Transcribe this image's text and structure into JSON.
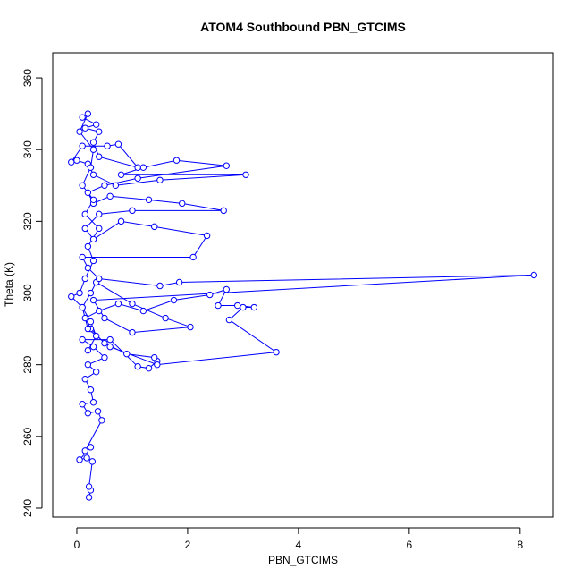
{
  "chart_data": {
    "type": "line",
    "marker": "circle",
    "title": "ATOM4 Southbound PBN_GTCIMS",
    "x_label": "PBN_GTCIMS",
    "y_label": "Theta (K)",
    "color": "#0000ff",
    "x": [
      0.22,
      0.25,
      0.22,
      0.28,
      0.18,
      0.05,
      0.25,
      0.15,
      0.45,
      0.38,
      0.2,
      0.1,
      0.3,
      0.25,
      0.15,
      0.35,
      0.2,
      0.5,
      0.3,
      0.1,
      0.6,
      1.1,
      1.3,
      1.45,
      1.4,
      0.9,
      0.5,
      0.25,
      0.15,
      0.4,
      0.75,
      1.2,
      1.75,
      2.4,
      2.7,
      2.55,
      2.9,
      3.2,
      3.0,
      2.75,
      3.6,
      1.45,
      0.6,
      0.2,
      0.1,
      0.25,
      0.35,
      1.0,
      1.6,
      2.05,
      1.0,
      0.5,
      0.3,
      8.25,
      1.85,
      1.5,
      0.4,
      0.2,
      0.1,
      2.1,
      2.35,
      1.4,
      0.8,
      0.3,
      0.15,
      0.4,
      1.0,
      2.65,
      1.9,
      1.3,
      0.6,
      0.3,
      0.2,
      0.5,
      1.1,
      2.7,
      1.8,
      1.2,
      0.8,
      3.05,
      1.5,
      0.7,
      0.3,
      0.2,
      0.0,
      -0.1,
      0.1,
      0.55,
      0.75,
      1.1,
      0.4,
      0.3,
      0.4,
      0.15,
      0.35,
      0.1,
      0.2,
      0.05,
      0.3,
      0.25,
      0.1,
      0.3,
      0.15,
      0.4,
      0.2,
      0.3,
      0.15,
      0.05,
      -0.1,
      0.1,
      0.25,
      0.35,
      0.2
    ],
    "values": [
      243,
      245,
      246,
      253,
      254,
      253.5,
      257,
      256,
      264.5,
      267,
      266.5,
      269,
      269.5,
      273,
      276,
      278,
      280,
      282,
      285,
      287,
      287,
      279.5,
      279,
      281,
      282,
      283,
      286,
      290,
      293,
      295,
      297,
      295,
      298,
      299.5,
      301,
      296.5,
      296.5,
      296,
      296,
      292.5,
      283.5,
      280,
      285,
      290,
      296,
      300,
      303,
      297,
      293,
      290.5,
      289,
      293,
      298,
      305,
      303,
      302,
      304,
      307,
      310,
      310,
      316,
      318.5,
      320,
      315,
      318,
      322,
      323,
      323,
      325,
      326,
      327,
      325,
      328,
      330,
      332,
      335.5,
      337,
      335,
      333,
      333,
      331.5,
      330,
      333,
      336,
      337,
      336.5,
      341,
      341,
      341.5,
      335,
      338,
      342,
      345,
      346,
      347,
      349,
      350,
      345,
      340,
      335,
      330,
      326,
      322,
      318,
      313,
      309,
      304,
      300,
      299,
      296,
      292,
      288,
      284
    ],
    "xlim": [
      -0.435,
      8.6
    ],
    "ylim": [
      237.5,
      367
    ],
    "xticks": [
      0,
      2,
      4,
      6,
      8
    ],
    "yticks": [
      240,
      260,
      280,
      300,
      320,
      340,
      360
    ]
  }
}
